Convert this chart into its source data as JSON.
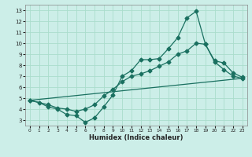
{
  "title": "",
  "xlabel": "Humidex (Indice chaleur)",
  "background_color": "#cceee8",
  "grid_color": "#aaddcc",
  "line_color": "#1a7060",
  "xlim": [
    -0.5,
    23.5
  ],
  "ylim": [
    2.5,
    13.5
  ],
  "xticks": [
    0,
    1,
    2,
    3,
    4,
    5,
    6,
    7,
    8,
    9,
    10,
    11,
    12,
    13,
    14,
    15,
    16,
    17,
    18,
    19,
    20,
    21,
    22,
    23
  ],
  "yticks": [
    3,
    4,
    5,
    6,
    7,
    8,
    9,
    10,
    11,
    12,
    13
  ],
  "line1_x": [
    0,
    1,
    2,
    3,
    4,
    5,
    6,
    7,
    8,
    9,
    10,
    11,
    12,
    13,
    14,
    15,
    16,
    17,
    18,
    19,
    20,
    21,
    22,
    23
  ],
  "line1_y": [
    4.8,
    4.6,
    4.2,
    4.0,
    3.5,
    3.4,
    2.8,
    3.2,
    4.2,
    5.3,
    7.0,
    7.5,
    8.5,
    8.5,
    8.6,
    9.5,
    10.5,
    12.3,
    12.9,
    9.9,
    8.4,
    8.2,
    7.3,
    6.9
  ],
  "line2_x": [
    0,
    2,
    3,
    4,
    5,
    6,
    7,
    8,
    9,
    10,
    11,
    12,
    13,
    14,
    15,
    16,
    17,
    18,
    19,
    20,
    21,
    22,
    23
  ],
  "line2_y": [
    4.8,
    4.4,
    4.1,
    4.0,
    3.8,
    4.0,
    4.4,
    5.2,
    5.8,
    6.5,
    7.0,
    7.2,
    7.5,
    7.9,
    8.3,
    9.0,
    9.3,
    10.0,
    9.9,
    8.3,
    7.6,
    7.0,
    6.8
  ],
  "line3_x": [
    0,
    23
  ],
  "line3_y": [
    4.8,
    6.8
  ],
  "markersize": 2.5,
  "linewidth": 0.9
}
